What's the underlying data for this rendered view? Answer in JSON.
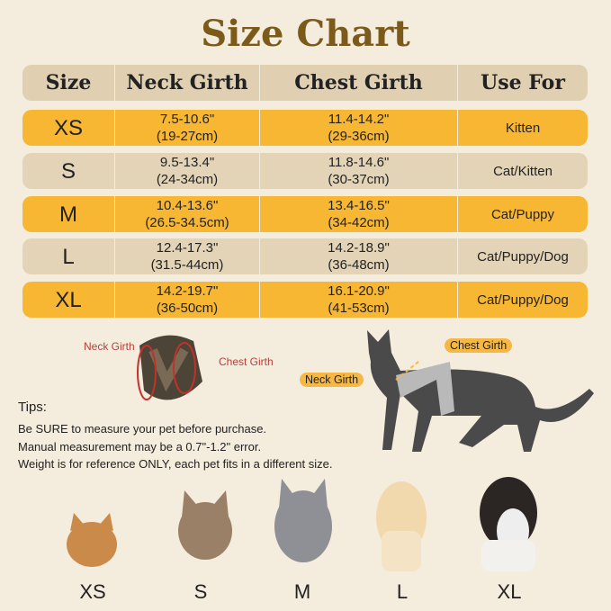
{
  "title": "Size Chart",
  "headers": [
    "Size",
    "Neck Girth",
    "Chest Girth",
    "Use For"
  ],
  "rows": [
    {
      "size": "XS",
      "neck_in": "7.5-10.6\"",
      "neck_cm": "(19-27cm)",
      "chest_in": "11.4-14.2\"",
      "chest_cm": "(29-36cm)",
      "use": "Kitten"
    },
    {
      "size": "S",
      "neck_in": "9.5-13.4\"",
      "neck_cm": "(24-34cm)",
      "chest_in": "11.8-14.6\"",
      "chest_cm": "(30-37cm)",
      "use": "Cat/Kitten"
    },
    {
      "size": "M",
      "neck_in": "10.4-13.6\"",
      "neck_cm": "(26.5-34.5cm)",
      "chest_in": "13.4-16.5\"",
      "chest_cm": "(34-42cm)",
      "use": "Cat/Puppy"
    },
    {
      "size": "L",
      "neck_in": "12.4-17.3\"",
      "neck_cm": "(31.5-44cm)",
      "chest_in": "14.2-18.9\"",
      "chest_cm": "(36-48cm)",
      "use": "Cat/Puppy/Dog"
    },
    {
      "size": "XL",
      "neck_in": "14.2-19.7\"",
      "neck_cm": "(36-50cm)",
      "chest_in": "16.1-20.9\"",
      "chest_cm": "(41-53cm)",
      "use": "Cat/Puppy/Dog"
    }
  ],
  "harness_labels": {
    "neck": "Neck Girth",
    "chest": "Chest Girth"
  },
  "cat_labels": {
    "neck": "Neck Girth",
    "chest": "Chest Girth"
  },
  "tips": {
    "heading": "Tips:",
    "lines": [
      "Be SURE to measure your pet before purchase.",
      "Manual measurement may be a 0.7\"-1.2\" error.",
      "Weight is for reference ONLY, each pet fits in a different size."
    ]
  },
  "pets": [
    "XS",
    "S",
    "M",
    "L",
    "XL"
  ],
  "colors": {
    "title": "#7c5a1a",
    "yellow_row": "#f8b733",
    "tan_row": "#e3d4b7",
    "header": "#e0d0b1",
    "background": "#f4ecdd"
  }
}
